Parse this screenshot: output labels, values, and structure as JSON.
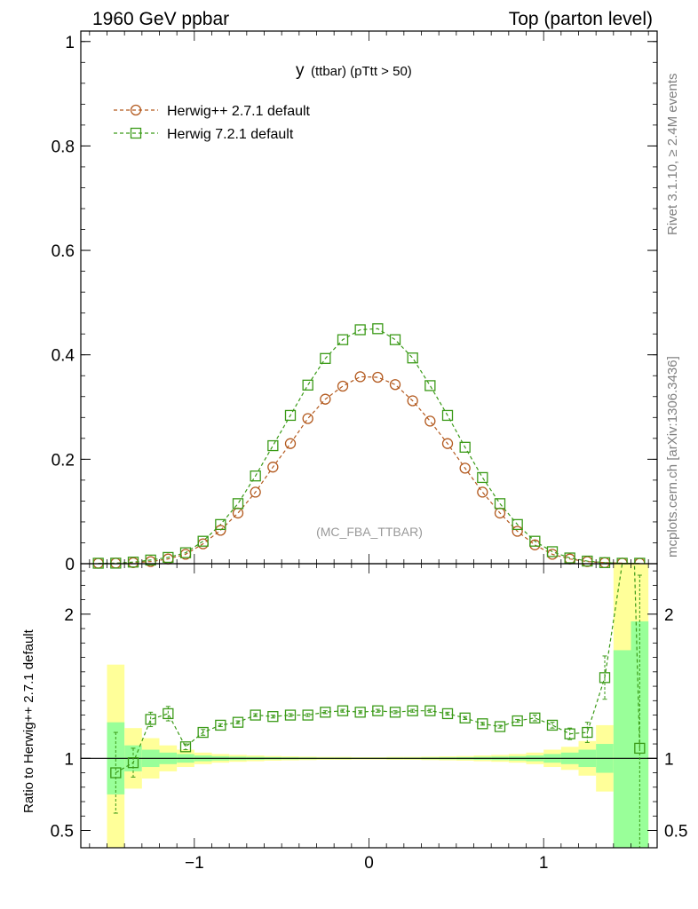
{
  "header": {
    "left": "1960 GeV ppbar",
    "right": "Top (parton level)"
  },
  "side_labels": {
    "rivet": "Rivet 3.1.10, ≥ 2.4M events",
    "source": "mcplots.cern.ch [arXiv:1306.3436]"
  },
  "chart_data": [
    {
      "type": "line",
      "title": "y (ttbar) (pTtt > 50)",
      "title_main": "y",
      "title_sub": "(ttbar) (pTtt > 50)",
      "watermark": "(MC_FBA_TTBAR)",
      "xlabel": "",
      "ylabel": "",
      "xlim": [
        -1.65,
        1.65
      ],
      "ylim": [
        0,
        1.02
      ],
      "yticks": [
        {
          "v": 0,
          "label": "0"
        },
        {
          "v": 0.2,
          "label": "0.2"
        },
        {
          "v": 0.4,
          "label": "0.4"
        },
        {
          "v": 0.6,
          "label": "0.6"
        },
        {
          "v": 0.8,
          "label": "0.8"
        },
        {
          "v": 1.0,
          "label": "1"
        }
      ],
      "legend_position": "top-left",
      "x": [
        -1.55,
        -1.45,
        -1.35,
        -1.25,
        -1.15,
        -1.05,
        -0.95,
        -0.85,
        -0.75,
        -0.65,
        -0.55,
        -0.45,
        -0.35,
        -0.25,
        -0.15,
        -0.05,
        0.05,
        0.15,
        0.25,
        0.35,
        0.45,
        0.55,
        0.65,
        0.75,
        0.85,
        0.95,
        1.05,
        1.15,
        1.25,
        1.35,
        1.45,
        1.55
      ],
      "series": [
        {
          "name": "Herwig++ 2.7.1 default",
          "color": "#b35a1f",
          "marker": "circle",
          "values": [
            0.0005,
            0.001,
            0.002,
            0.004,
            0.009,
            0.018,
            0.038,
            0.064,
            0.097,
            0.137,
            0.185,
            0.23,
            0.278,
            0.315,
            0.34,
            0.358,
            0.357,
            0.343,
            0.312,
            0.273,
            0.23,
            0.183,
            0.137,
            0.097,
            0.062,
            0.036,
            0.018,
            0.009,
            0.004,
            0.002,
            0.001,
            0.0005
          ]
        },
        {
          "name": "Herwig 7.2.1 default",
          "color": "#3a9a17",
          "marker": "square",
          "values": [
            0.0006,
            0.001,
            0.003,
            0.007,
            0.012,
            0.021,
            0.043,
            0.075,
            0.115,
            0.168,
            0.226,
            0.284,
            0.342,
            0.393,
            0.429,
            0.448,
            0.45,
            0.429,
            0.394,
            0.341,
            0.284,
            0.223,
            0.165,
            0.115,
            0.075,
            0.043,
            0.023,
            0.011,
            0.005,
            0.002,
            0.0008,
            0.0004
          ]
        }
      ]
    },
    {
      "type": "line",
      "title": "",
      "ylabel": "Ratio to Herwig++ 2.7.1 default",
      "xlim": [
        -1.65,
        1.65
      ],
      "ylim": [
        0.38,
        2.35
      ],
      "ylabel_ticks": [
        {
          "v": 0.5,
          "label": "0.5"
        },
        {
          "v": 1,
          "label": "1"
        },
        {
          "v": 2,
          "label": "2"
        }
      ],
      "xticks": [
        {
          "v": -1,
          "label": "−1"
        },
        {
          "v": 0,
          "label": "0"
        },
        {
          "v": 1,
          "label": "1"
        }
      ],
      "reference_line": 1,
      "x": [
        -1.45,
        -1.35,
        -1.25,
        -1.15,
        -1.05,
        -0.95,
        -0.85,
        -0.75,
        -0.65,
        -0.55,
        -0.45,
        -0.35,
        -0.25,
        -0.15,
        -0.05,
        0.05,
        0.15,
        0.25,
        0.35,
        0.45,
        0.55,
        0.65,
        0.75,
        0.85,
        0.95,
        1.05,
        1.15,
        1.25,
        1.35,
        1.55
      ],
      "series": [
        {
          "name": "Herwig 7.2.1 default",
          "color": "#3a9a17",
          "marker": "square",
          "values": [
            0.9,
            0.97,
            1.27,
            1.31,
            1.08,
            1.18,
            1.23,
            1.25,
            1.3,
            1.29,
            1.3,
            1.3,
            1.32,
            1.33,
            1.32,
            1.33,
            1.32,
            1.33,
            1.33,
            1.31,
            1.28,
            1.24,
            1.22,
            1.26,
            1.28,
            1.23,
            1.17,
            1.18,
            1.56,
            1.07
          ],
          "errors": [
            0.28,
            0.1,
            0.05,
            0.05,
            0.02,
            0.02,
            0.01,
            0.01,
            0.01,
            0.01,
            0.01,
            0.01,
            0.01,
            0.01,
            0.01,
            0.01,
            0.01,
            0.01,
            0.01,
            0.01,
            0.01,
            0.01,
            0.01,
            0.01,
            0.02,
            0.02,
            0.04,
            0.07,
            0.15,
            1.2
          ]
        }
      ],
      "bands": {
        "edges": [
          -1.5,
          -1.4,
          -1.3,
          -1.2,
          -1.1,
          -1.0,
          -0.9,
          -0.8,
          -0.7,
          -0.6,
          -0.5,
          -0.4,
          -0.3,
          -0.2,
          -0.1,
          0.0,
          0.1,
          0.2,
          0.3,
          0.4,
          0.5,
          0.6,
          0.7,
          0.8,
          0.9,
          1.0,
          1.1,
          1.2,
          1.3,
          1.4,
          1.5,
          1.6
        ],
        "green_halfwidth": [
          0.25,
          0.09,
          0.06,
          0.04,
          0.03,
          0.02,
          0.015,
          0.012,
          0.01,
          0.008,
          0.007,
          0.006,
          0.005,
          0.005,
          0.004,
          0.004,
          0.005,
          0.005,
          0.006,
          0.007,
          0.008,
          0.01,
          0.012,
          0.015,
          0.02,
          0.03,
          0.04,
          0.06,
          0.1,
          0.75,
          0.95
        ],
        "yellow_halfwidth": [
          0.65,
          0.21,
          0.14,
          0.09,
          0.06,
          0.04,
          0.03,
          0.024,
          0.02,
          0.016,
          0.014,
          0.012,
          0.01,
          0.01,
          0.008,
          0.008,
          0.01,
          0.01,
          0.012,
          0.014,
          0.016,
          0.02,
          0.024,
          0.03,
          0.04,
          0.06,
          0.08,
          0.12,
          0.23,
          1.5,
          1.5
        ],
        "green_color": "#99ff99",
        "yellow_color": "#ffff99"
      }
    }
  ]
}
